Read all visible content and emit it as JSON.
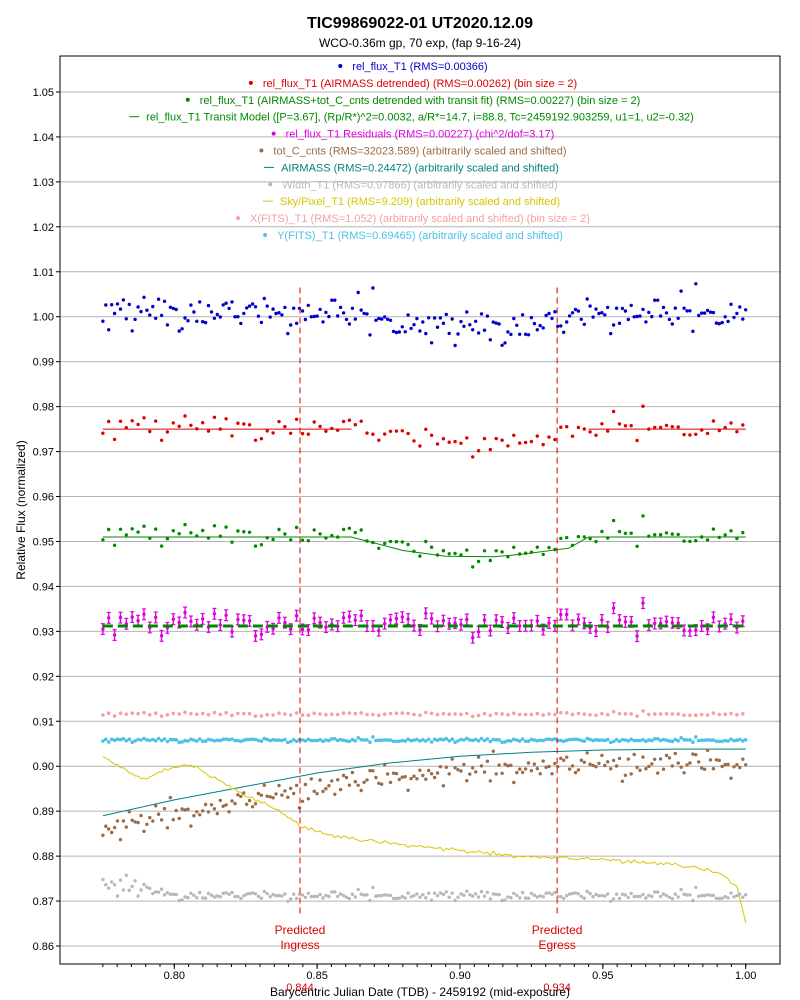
{
  "chart_data": {
    "type": "scatter",
    "title": "TIC99869022-01 UT2020.12.09",
    "subtitle": "WCO-0.36m gp, 70 exp, (fap 9-16-24)",
    "xlabel": "Barycentric Julian Date (TDB) - 2459192 (mid-exposure)",
    "ylabel": "Relative Flux (normalized)",
    "xlim": [
      0.76,
      1.012
    ],
    "ylim": [
      0.856,
      1.058
    ],
    "xticks": [
      "0.80",
      "0.85",
      "0.90",
      "0.95",
      "1.00"
    ],
    "xtick_values": [
      0.8,
      0.85,
      0.9,
      0.95,
      1.0
    ],
    "yticks": [
      "0.86",
      "0.87",
      "0.88",
      "0.89",
      "0.90",
      "0.91",
      "0.92",
      "0.93",
      "0.94",
      "0.95",
      "0.96",
      "0.97",
      "0.98",
      "0.99",
      "1.00",
      "1.01",
      "1.02",
      "1.03",
      "1.04",
      "1.05"
    ],
    "ytick_values": [
      0.86,
      0.87,
      0.88,
      0.89,
      0.9,
      0.91,
      0.92,
      0.93,
      0.94,
      0.95,
      0.96,
      0.97,
      0.98,
      0.99,
      1.0,
      1.01,
      1.02,
      1.03,
      1.04,
      1.05
    ],
    "grid": "horizontal",
    "legend_position": "top-center",
    "legend": [
      {
        "text": "rel_flux_T1 (RMS=0.00366)",
        "color": "#0000cc",
        "marker": "dot"
      },
      {
        "text": "rel_flux_T1 (AIRMASS detrended) (RMS=0.00262) (bin size = 2)",
        "color": "#dd0000",
        "marker": "dot"
      },
      {
        "text": "rel_flux_T1 (AIRMASS+tot_C_cnts detrended with transit fit) (RMS=0.00227) (bin size = 2)",
        "color": "#008800",
        "marker": "dot"
      },
      {
        "text": "rel_flux_T1 Transit Model ([P=3.67], (Rp/R*)^2=0.0032, a/R*=14.7, i=88.8, Tc=2459192.903259, u1=1, u2=-0.32)",
        "color": "#008800",
        "marker": "line"
      },
      {
        "text": "rel_flux_T1 Residuals (RMS=0.00227) (chi^2/dof=3.17)",
        "color": "#dd00dd",
        "marker": "dot"
      },
      {
        "text": "tot_C_cnts (RMS=32023.589) (arbitrarily scaled and shifted)",
        "color": "#9b6b45",
        "marker": "dot"
      },
      {
        "text": "AIRMASS (RMS=0.24472) (arbitrarily scaled and shifted)",
        "color": "#008080",
        "marker": "line"
      },
      {
        "text": "Width_T1 (RMS=0.97866) (arbitrarily scaled and shifted)",
        "color": "#b8b8b8",
        "marker": "dot"
      },
      {
        "text": "Sky/Pixel_T1 (RMS=9.209) (arbitrarily scaled and shifted)",
        "color": "#d4c800",
        "marker": "line"
      },
      {
        "text": "X(FITS)_T1 (RMS=1.052) (arbitrarily scaled and shifted) (bin size = 2)",
        "color": "#f4a0a0",
        "marker": "dot"
      },
      {
        "text": "Y(FITS)_T1 (RMS=0.69465) (arbitrarily scaled and shifted)",
        "color": "#4fc0e8",
        "marker": "dot"
      }
    ],
    "markers": [
      {
        "x": 0.844,
        "label_line1": "Predicted",
        "label_line2": "Ingress",
        "value_label": "0.844",
        "color": "#dd0000"
      },
      {
        "x": 0.934,
        "label_line1": "Predicted",
        "label_line2": "Egress",
        "value_label": "0.934",
        "color": "#dd0000"
      }
    ],
    "x_start": 0.775,
    "x_end": 1.0,
    "transit_model": {
      "x": [
        0.775,
        0.862,
        0.88,
        0.895,
        0.912,
        0.922,
        0.938,
        0.945,
        1.0
      ],
      "y": [
        0.951,
        0.951,
        0.948,
        0.9467,
        0.9466,
        0.9472,
        0.9485,
        0.951,
        0.951
      ]
    },
    "detrended_model": {
      "x": [
        0.775,
        0.862
      ],
      "y": [
        0.975,
        0.975
      ],
      "x2": [
        0.945,
        1.0
      ],
      "y2": [
        0.975,
        0.975
      ]
    },
    "residual_fit_y": 0.9312,
    "airmass": {
      "x": [
        0.775,
        0.8,
        0.825,
        0.85,
        0.875,
        0.9,
        0.925,
        0.95,
        0.975,
        1.0
      ],
      "y": [
        0.889,
        0.8925,
        0.8955,
        0.8985,
        0.9007,
        0.9022,
        0.9031,
        0.9036,
        0.9038,
        0.9038
      ]
    },
    "sky": {
      "x": [
        0.775,
        0.785,
        0.79,
        0.795,
        0.805,
        0.815,
        0.825,
        0.835,
        0.845,
        0.855,
        0.865,
        0.875,
        0.885,
        0.895,
        0.905,
        0.915,
        0.925,
        0.935,
        0.945,
        0.955,
        0.965,
        0.975,
        0.985,
        0.992,
        0.997,
        1.0
      ],
      "y": [
        0.902,
        0.8985,
        0.897,
        0.899,
        0.9005,
        0.897,
        0.8935,
        0.8905,
        0.8865,
        0.8845,
        0.8835,
        0.8828,
        0.8822,
        0.8815,
        0.8808,
        0.8802,
        0.8798,
        0.8795,
        0.8792,
        0.879,
        0.8785,
        0.878,
        0.877,
        0.8758,
        0.8732,
        0.865
      ]
    },
    "series_levels": {
      "rel_flux_T1": {
        "baseline": 1.0,
        "transit_depth": 0.0033,
        "scatter": 0.0036
      },
      "rel_flux_T1 (AIRMASS detrended)": {
        "baseline": 0.9748,
        "transit_depth": 0.0033,
        "scatter": 0.0026
      },
      "rel_flux_T1 (AIRMASS+tot_C_cnts detrended with transit fit)": {
        "baseline": 0.951,
        "transit_depth": 0.0043,
        "scatter": 0.0023
      },
      "rel_flux_T1 Residuals": {
        "baseline": 0.9312,
        "scatter": 0.0025,
        "errorbar": 0.0012
      },
      "X(FITS)_T1": {
        "baseline": 0.9115,
        "scatter": 0.0004
      },
      "Y(FITS)_T1": {
        "baseline": 0.9057,
        "scatter": 0.0004
      },
      "tot_C_cnts": {
        "baseline": 0.9,
        "scatter": 0.0025
      },
      "Width_T1": {
        "baseline": 0.871,
        "scatter": 0.001
      }
    }
  }
}
